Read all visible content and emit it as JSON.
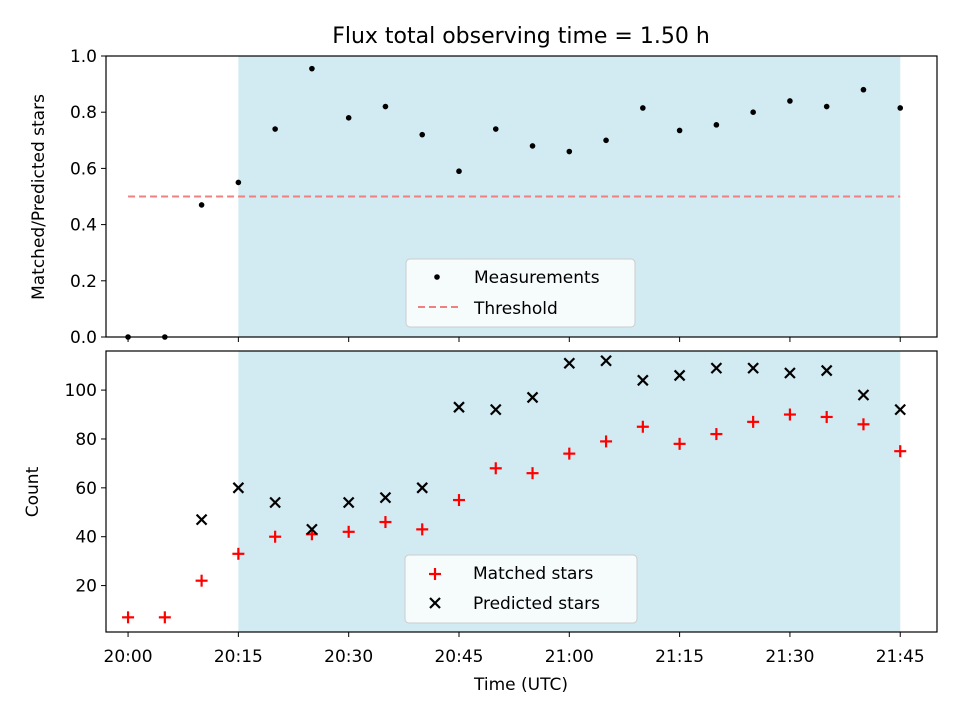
{
  "chart_data": {
    "title": "Flux total observing time = 1.50 h",
    "xlabel": "Time (UTC)",
    "x_tick_labels": [
      "20:00",
      "20:15",
      "20:30",
      "20:45",
      "21:00",
      "21:15",
      "21:30",
      "21:45"
    ],
    "x_times": [
      "20:00",
      "20:05",
      "20:10",
      "20:15",
      "20:20",
      "20:25",
      "20:30",
      "20:35",
      "20:40",
      "20:45",
      "20:50",
      "20:55",
      "21:00",
      "21:05",
      "21:10",
      "21:15",
      "21:20",
      "21:25",
      "21:30",
      "21:35",
      "21:40",
      "21:45"
    ],
    "xlim": [
      "19:57",
      "21:50"
    ],
    "shaded_interval": {
      "start": "20:15",
      "end": "21:45",
      "color": "#add8e6"
    },
    "panels": [
      {
        "type": "scatter",
        "ylabel": "Matched/Predicted stars",
        "ylim": [
          0,
          1.0
        ],
        "y_tick_labels": [
          "0.0",
          "0.2",
          "0.4",
          "0.6",
          "0.8",
          "1.0"
        ],
        "series": [
          {
            "name": "Measurements",
            "marker": "dot",
            "color": "#000000",
            "values": [
              0.0,
              0.0,
              0.47,
              0.55,
              0.74,
              0.955,
              0.78,
              0.82,
              0.72,
              0.59,
              0.74,
              0.68,
              0.66,
              0.7,
              0.815,
              0.735,
              0.755,
              0.8,
              0.84,
              0.82,
              0.88,
              0.815
            ]
          },
          {
            "name": "Threshold",
            "type": "line",
            "style": "dashed",
            "color": "#f08080",
            "x": [
              "20:00",
              "21:45"
            ],
            "values": [
              0.5,
              0.5
            ]
          }
        ],
        "legend": "lower-center"
      },
      {
        "type": "scatter",
        "ylabel": "Count",
        "ylim": [
          1,
          116
        ],
        "y_tick_labels": [
          "20",
          "40",
          "60",
          "80",
          "100"
        ],
        "series": [
          {
            "name": "Matched stars",
            "marker": "plus",
            "color": "#ff0000",
            "values": [
              7,
              7,
              22,
              33,
              40,
              41,
              42,
              46,
              43,
              55,
              68,
              66,
              74,
              79,
              85,
              78,
              82,
              87,
              90,
              89,
              86,
              75
            ]
          },
          {
            "name": "Predicted stars",
            "marker": "x",
            "color": "#000000",
            "values": [
              null,
              null,
              47,
              60,
              54,
              43,
              54,
              56,
              60,
              93,
              92,
              97,
              111,
              112,
              104,
              106,
              109,
              109,
              107,
              108,
              98,
              92
            ]
          }
        ],
        "legend": "lower-center"
      }
    ]
  }
}
